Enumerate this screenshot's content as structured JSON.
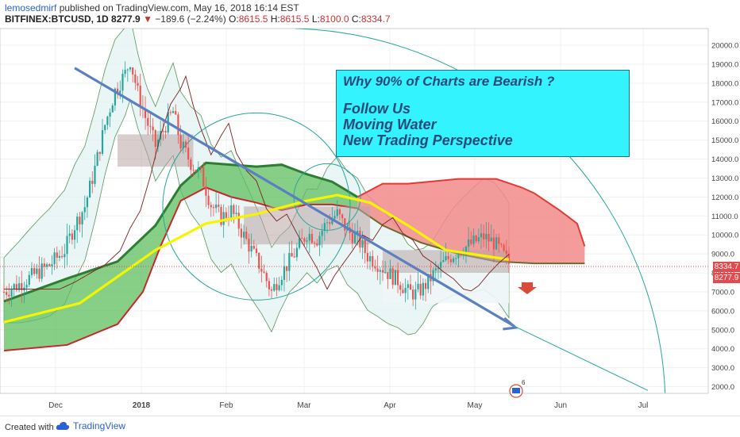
{
  "header": {
    "author": "lemosedmirf",
    "published": "published on TradingView.com, May 16, 2018 16:14 EST",
    "symbol": "BITFINEX:BTCUSD, 1D",
    "last": "8277.9",
    "change": "−189.6 (−2.24%)",
    "open_label": "O:",
    "open": "8615.5",
    "high_label": "H:",
    "high": "8615.5",
    "low_label": "L:",
    "low": "8100.0",
    "close_label": "C:",
    "close": "8334.7"
  },
  "annotation": {
    "title": "Why 90% of Charts are Bearish ?",
    "line1": "Follow Us",
    "line2": "Moving Water",
    "line3": "New Trading Perspective"
  },
  "price_tags": {
    "upper": "8334.7",
    "lower": "8277.9"
  },
  "footer": {
    "created_with": "Created with",
    "brand": "TradingView"
  },
  "colors": {
    "up_candle": "#26a69a",
    "down_candle": "#ef5350",
    "cloud_bear": "#f08080",
    "cloud_bull": "#4caf50",
    "ma_yellow": "#f5f500",
    "trendline": "#5b7fc0",
    "annotation_bg": "#33f3ff",
    "price_tag_red": "#e5484d"
  },
  "chart_data": {
    "type": "candlestick",
    "y_axis": {
      "ticks": [
        "20000.0",
        "19000.0",
        "18000.0",
        "17000.0",
        "16000.0",
        "15000.0",
        "14000.0",
        "13000.0",
        "12000.0",
        "11000.0",
        "10000.0",
        "9000.0",
        "8000.0",
        "7000.0",
        "6000.0",
        "5000.0",
        "4000.0",
        "3000.0",
        "2000.0"
      ],
      "tick_values": [
        20000,
        19000,
        18000,
        17000,
        16000,
        15000,
        14000,
        13000,
        12000,
        11000,
        10000,
        9000,
        8000,
        7000,
        6000,
        5000,
        4000,
        3000,
        2000
      ],
      "range": [
        1400,
        20800
      ]
    },
    "x_axis": {
      "labels": [
        "Dec",
        "2018",
        "Feb",
        "Mar",
        "Apr",
        "May",
        "Jun",
        "Jul"
      ],
      "bold": [
        "2018"
      ]
    },
    "price_path": [
      [
        0,
        7000
      ],
      [
        6,
        7400
      ],
      [
        12,
        7900
      ],
      [
        18,
        8400
      ],
      [
        24,
        9200
      ],
      [
        28,
        10500
      ],
      [
        32,
        11500
      ],
      [
        36,
        13500
      ],
      [
        40,
        15800
      ],
      [
        44,
        17600
      ],
      [
        48,
        18500
      ],
      [
        50,
        19200
      ],
      [
        53,
        17500
      ],
      [
        56,
        16200
      ],
      [
        60,
        14700
      ],
      [
        64,
        15800
      ],
      [
        67,
        16500
      ],
      [
        70,
        14800
      ],
      [
        74,
        13800
      ],
      [
        78,
        13200
      ],
      [
        82,
        11600
      ],
      [
        86,
        10900
      ],
      [
        90,
        11300
      ],
      [
        94,
        10200
      ],
      [
        98,
        9200
      ],
      [
        102,
        8200
      ],
      [
        106,
        7000
      ],
      [
        109,
        7800
      ],
      [
        112,
        8400
      ],
      [
        116,
        9200
      ],
      [
        120,
        10100
      ],
      [
        124,
        9800
      ],
      [
        128,
        10700
      ],
      [
        132,
        11100
      ],
      [
        136,
        10200
      ],
      [
        140,
        9800
      ],
      [
        144,
        8900
      ],
      [
        148,
        8500
      ],
      [
        152,
        8000
      ],
      [
        156,
        7600
      ],
      [
        160,
        7000
      ],
      [
        163,
        6900
      ],
      [
        166,
        7200
      ],
      [
        170,
        7900
      ],
      [
        174,
        8500
      ],
      [
        178,
        9000
      ],
      [
        182,
        9300
      ],
      [
        186,
        9600
      ],
      [
        190,
        9900
      ],
      [
        194,
        9600
      ],
      [
        197,
        9100
      ],
      [
        200,
        8500
      ]
    ],
    "series": [
      {
        "name": "",
        "kind": "moving-average",
        "color": "#f5f500",
        "points": [
          [
            0,
            5400
          ],
          [
            30,
            6400
          ],
          [
            60,
            9200
          ],
          [
            80,
            10600
          ],
          [
            100,
            11100
          ],
          [
            120,
            11800
          ],
          [
            132,
            12100
          ],
          [
            145,
            11700
          ],
          [
            160,
            10500
          ],
          [
            175,
            9200
          ],
          [
            190,
            8900
          ],
          [
            200,
            8700
          ]
        ]
      },
      {
        "name": "",
        "kind": "bear-cloud",
        "upper": [
          [
            140,
            12000
          ],
          [
            150,
            12700
          ],
          [
            160,
            12700
          ],
          [
            180,
            12950
          ],
          [
            195,
            12950
          ],
          [
            205,
            12500
          ],
          [
            210,
            12200
          ],
          [
            220,
            11300
          ],
          [
            227,
            10600
          ],
          [
            230,
            9400
          ]
        ],
        "lower": [
          [
            140,
            11400
          ],
          [
            150,
            10500
          ],
          [
            165,
            9600
          ],
          [
            180,
            9000
          ],
          [
            195,
            8600
          ],
          [
            210,
            8500
          ],
          [
            220,
            8500
          ],
          [
            230,
            8500
          ]
        ]
      },
      {
        "name": "",
        "kind": "bull-cloud",
        "upper": [
          [
            0,
            6500
          ],
          [
            25,
            7700
          ],
          [
            45,
            8600
          ],
          [
            60,
            10500
          ],
          [
            70,
            12600
          ],
          [
            80,
            13800
          ],
          [
            90,
            13700
          ],
          [
            100,
            13600
          ],
          [
            110,
            13700
          ],
          [
            120,
            13200
          ],
          [
            130,
            12800
          ],
          [
            140,
            12000
          ]
        ],
        "lower": [
          [
            0,
            3900
          ],
          [
            25,
            4200
          ],
          [
            45,
            5300
          ],
          [
            55,
            7000
          ],
          [
            62,
            9400
          ],
          [
            70,
            11800
          ],
          [
            80,
            12500
          ],
          [
            90,
            12000
          ],
          [
            100,
            11700
          ],
          [
            110,
            11300
          ],
          [
            120,
            11600
          ],
          [
            130,
            11600
          ],
          [
            140,
            11400
          ]
        ]
      }
    ],
    "trendline": {
      "from": [
        28,
        18800
      ],
      "to": [
        202,
        5200
      ],
      "extended_to": [
        255,
        1800
      ]
    }
  }
}
